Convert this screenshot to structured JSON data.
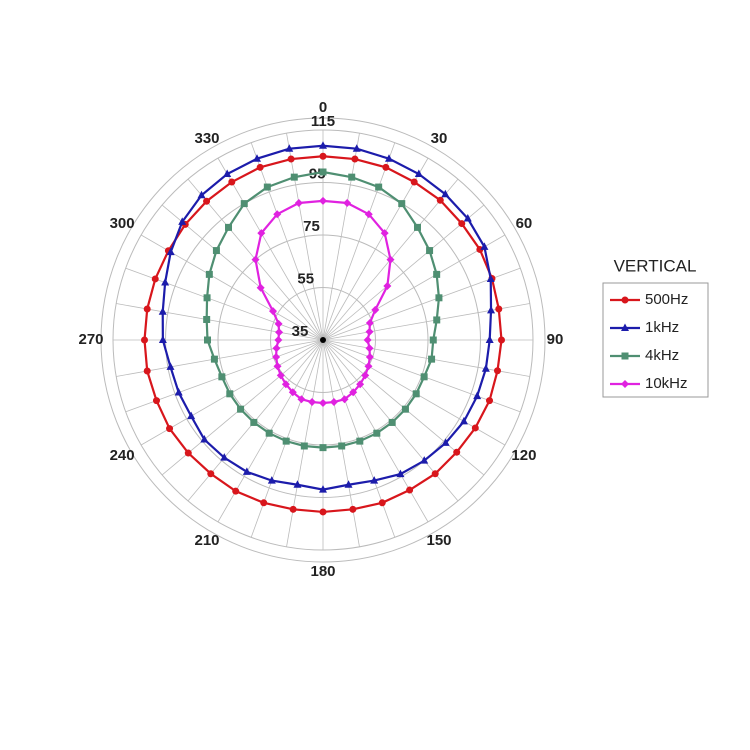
{
  "chart_data": {
    "type": "polar",
    "x": [
      0,
      10,
      20,
      30,
      40,
      50,
      60,
      70,
      80,
      90,
      100,
      110,
      120,
      130,
      140,
      150,
      160,
      170,
      180,
      190,
      200,
      210,
      220,
      230,
      240,
      250,
      260,
      270,
      280,
      290,
      300,
      310,
      320,
      330,
      340,
      350
    ],
    "thetaticks": [
      0,
      30,
      60,
      90,
      120,
      150,
      180,
      210,
      240,
      270,
      300,
      330
    ],
    "rlim": [
      35,
      115
    ],
    "rticks": [
      35,
      55,
      75,
      95,
      115
    ],
    "grid": true,
    "legend_title": "VERTICAL",
    "legend": "right",
    "series": [
      {
        "name": "500Hz",
        "color": "#d8161c",
        "marker": "circle",
        "values": [
          105,
          105,
          105,
          104.5,
          104.5,
          104,
          104,
          103.5,
          103,
          103,
          102.5,
          102.5,
          102,
          101.5,
          101.5,
          101,
          101,
          100.5,
          100.5,
          100.5,
          101,
          101.5,
          101.5,
          102,
          102.5,
          102.5,
          103,
          103,
          103,
          103,
          103,
          103.5,
          104,
          104.5,
          105,
          105
        ]
      },
      {
        "name": "1kHz",
        "color": "#1c1cab",
        "marker": "triangle",
        "values": [
          109,
          109,
          108.5,
          108,
          107.5,
          107,
          106,
          103,
          100,
          98.5,
          98,
          97.5,
          97,
          96,
          95,
          94,
          92,
          91,
          92,
          91,
          92,
          93,
          93.5,
          94,
          93,
          93.5,
          94,
          96,
          97,
          99,
          102,
          105,
          107,
          108,
          108.5,
          109
        ]
      },
      {
        "name": "4kHz",
        "color": "#4f8f72",
        "marker": "square",
        "values": [
          99,
          98,
          97,
          95,
          91,
          88,
          85,
          82,
          79,
          77,
          77,
          76,
          76,
          76,
          76,
          76,
          76,
          76,
          76,
          76,
          76,
          76,
          76,
          76,
          76,
          76,
          77,
          79,
          80,
          82,
          85,
          88,
          91,
          95,
          97,
          98
        ]
      },
      {
        "name": "10kHz",
        "color": "#e022e0",
        "marker": "diamond",
        "values": [
          88,
          88,
          86,
          82,
          75,
          67,
          58,
          54,
          53,
          52,
          53,
          54,
          55,
          56,
          57,
          58,
          59,
          59,
          59,
          59,
          59,
          58,
          57,
          56,
          55,
          54,
          53,
          52,
          52,
          53,
          57,
          66,
          75,
          82,
          86,
          88
        ]
      }
    ]
  }
}
